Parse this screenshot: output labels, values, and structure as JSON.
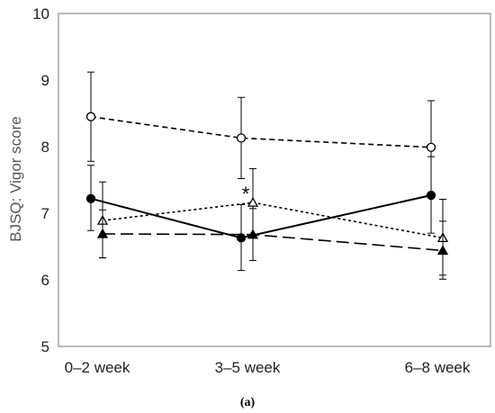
{
  "chart_data": {
    "type": "line",
    "categories": [
      "0–2 week",
      "3–5 week",
      "6–8 week"
    ],
    "ylabel": "BJSQ: Vigor score",
    "ylim": [
      5,
      10
    ],
    "yticks": [
      5,
      6,
      7,
      8,
      9,
      10
    ],
    "grid": false,
    "caption": "(a)",
    "annotation": {
      "text": "*",
      "category_index": 1
    },
    "series": [
      {
        "marker": "circle-open",
        "line": "short-dash",
        "values": [
          8.45,
          8.13,
          7.99
        ],
        "err_low": [
          7.78,
          7.52,
          7.29
        ],
        "err_high": [
          9.12,
          8.74,
          8.69
        ]
      },
      {
        "marker": "triangle-open",
        "line": "dotted",
        "values": [
          6.89,
          7.16,
          6.63
        ],
        "err_low": [
          6.33,
          6.65,
          6.07
        ],
        "err_high": [
          7.47,
          7.67,
          7.21
        ]
      },
      {
        "marker": "circle-filled",
        "line": "solid",
        "values": [
          7.22,
          6.63,
          7.27
        ],
        "err_low": [
          6.74,
          6.14,
          6.7
        ],
        "err_high": [
          7.72,
          7.13,
          7.85
        ]
      },
      {
        "marker": "triangle-filled",
        "line": "long-dash",
        "values": [
          6.69,
          6.68,
          6.44
        ],
        "err_low": [
          6.33,
          6.29,
          6.01
        ],
        "err_high": [
          7.05,
          7.07,
          6.88
        ]
      }
    ]
  }
}
